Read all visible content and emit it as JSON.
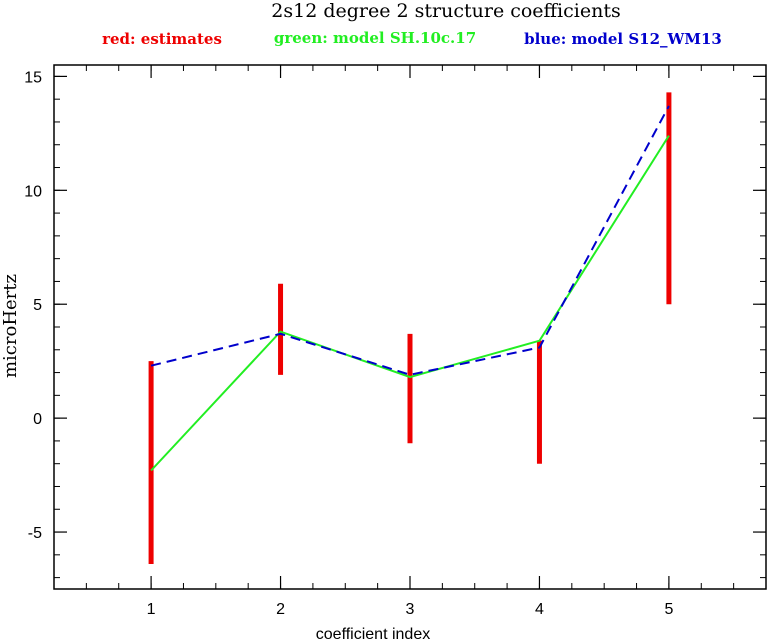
{
  "chart_data": {
    "type": "line",
    "title": "2s12 degree 2 structure coefficients",
    "xlabel": "coefficient index",
    "ylabel": "microHertz",
    "xlim": [
      0.25,
      5.75
    ],
    "ylim": [
      -7.5,
      15.5
    ],
    "x_ticks": [
      1,
      2,
      3,
      4,
      5
    ],
    "y_ticks": [
      -5,
      0,
      5,
      10,
      15
    ],
    "x": [
      1,
      2,
      3,
      4,
      5
    ],
    "legend": [
      {
        "label": "red: estimates",
        "color": "#ee0000"
      },
      {
        "label": "green: model SH.10c.17",
        "color": "#22ee22"
      },
      {
        "label": "blue: model S12_WM13",
        "color": "#0000cc"
      }
    ],
    "estimates": {
      "color": "#ee0000",
      "low": [
        -6.4,
        1.9,
        -1.1,
        -2.0,
        5.0
      ],
      "high": [
        2.5,
        5.9,
        3.7,
        3.4,
        14.3
      ]
    },
    "series": [
      {
        "color": "#22ee22",
        "style": "solid",
        "values": [
          -2.3,
          3.8,
          1.8,
          3.4,
          12.4
        ]
      },
      {
        "color": "#0000cc",
        "style": "dashed",
        "values": [
          2.3,
          3.7,
          1.9,
          3.1,
          13.7
        ]
      }
    ]
  }
}
